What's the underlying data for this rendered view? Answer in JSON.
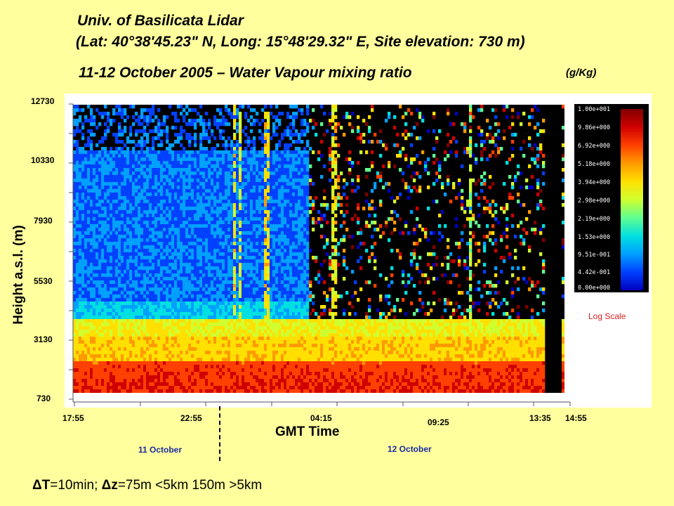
{
  "title_line1": "Univ. of Basilicata Lidar",
  "title_line2": "(Lat: 40°38'45.23\" N, Long: 15°48'29.32\" E, Site elevation: 730 m)",
  "title_line3": "11-12 October 2005 – Water Vapour mixing ratio",
  "unit_label": "(g/Kg)",
  "note": {
    "dt_symbol": "ΔT",
    "dt_text": "=10min;",
    "dz_symbol": "Δz",
    "dz_text": "=75m <5km 150m >5km"
  },
  "colorbar": {
    "labels": [
      "1.00e+001",
      "9.86e+000",
      "6.92e+000",
      "5.18e+000",
      "3.94e+000",
      "2.98e+000",
      "2.19e+000",
      "1.53e+000",
      "9.51e-001",
      "4.42e-001",
      "0.00e+000"
    ],
    "scale_label": "Log Scale"
  },
  "dates": {
    "left": "11 October",
    "right": "12 October"
  },
  "chart_data": {
    "type": "heatmap",
    "xlabel": "GMT Time",
    "ylabel": "Height a.s.l. (m)",
    "y_ticks": [
      "12730",
      "10330",
      "7930",
      "5530",
      "3130",
      "730"
    ],
    "x_ticks": [
      "17:55",
      "22:55",
      "04:15",
      "09:25",
      "13:35",
      "14:55"
    ],
    "ylim": [
      730,
      12730
    ],
    "color_scale": "log",
    "colormap": [
      "#0000c0",
      "#0040ff",
      "#00a0ff",
      "#00e0e0",
      "#60ff90",
      "#d0ff30",
      "#ffe000",
      "#ff9a00",
      "#ff4000",
      "#d00000",
      "#800000"
    ],
    "value_range": [
      0,
      10
    ],
    "unit": "(g/Kg)"
  }
}
